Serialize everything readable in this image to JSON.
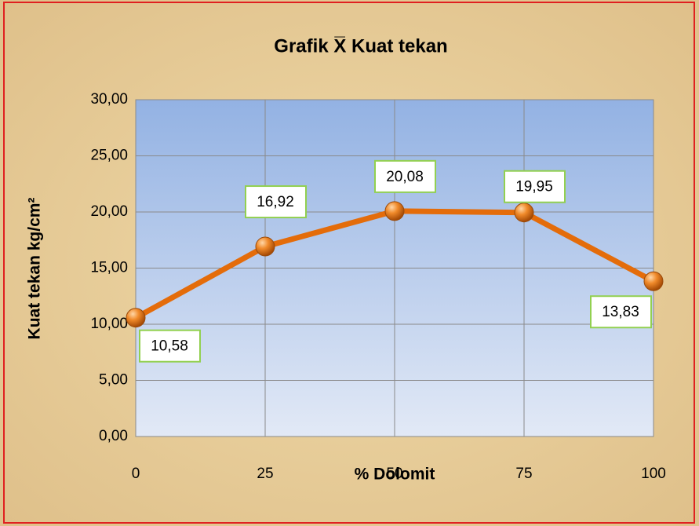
{
  "chart_data": {
    "type": "line",
    "title": "Grafik X̅ Kuat tekan",
    "x_label": "% Dolomit",
    "y_label": "Kuat tekan kg/cm²",
    "x": [
      0,
      25,
      50,
      75,
      100
    ],
    "series": [
      {
        "name": "Kuat tekan",
        "color": "#e46c0a",
        "values": [
          10.58,
          16.92,
          20.08,
          19.95,
          13.83
        ],
        "value_labels": [
          "10,58",
          "16,92",
          "20,08",
          "19,95",
          "13,83"
        ]
      }
    ],
    "xlim": [
      0,
      100
    ],
    "xticks": [
      0,
      25,
      50,
      75,
      100
    ],
    "ylim": [
      0,
      30
    ],
    "yticks": [
      {
        "value": 0,
        "label": "0,00"
      },
      {
        "value": 5,
        "label": "5,00"
      },
      {
        "value": 10,
        "label": "10,00"
      },
      {
        "value": 15,
        "label": "15,00"
      },
      {
        "value": 20,
        "label": "20,00"
      },
      {
        "value": 25,
        "label": "25,00"
      },
      {
        "value": 30,
        "label": "30,00"
      }
    ],
    "grid": true
  }
}
